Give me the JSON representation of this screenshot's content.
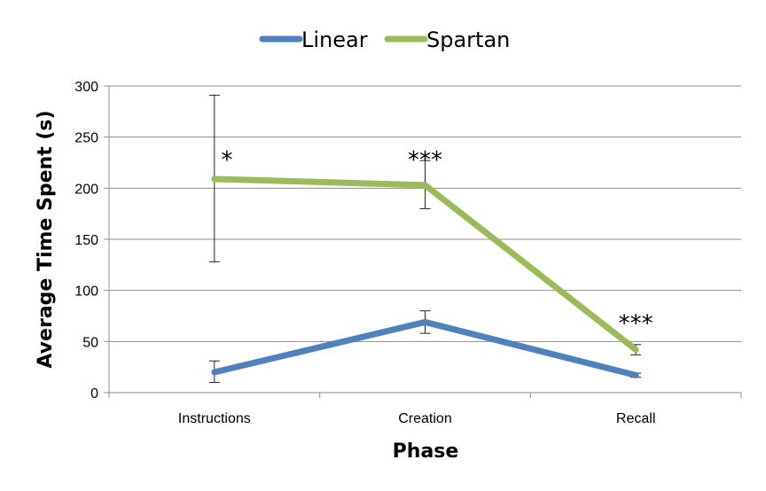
{
  "chart_data": {
    "type": "line",
    "categories": [
      "Instructions",
      "Creation",
      "Recall"
    ],
    "series": [
      {
        "name": "Linear",
        "color": "#4f81bd",
        "values": [
          20,
          69,
          17
        ],
        "error": [
          [
            10,
            31
          ],
          [
            58,
            80
          ],
          [
            15,
            19
          ]
        ]
      },
      {
        "name": "Spartan",
        "color": "#9bbb59",
        "values": [
          209,
          203,
          42
        ],
        "error": [
          [
            128,
            291
          ],
          [
            180,
            227
          ],
          [
            37,
            47
          ]
        ]
      }
    ],
    "annotations": [
      {
        "category": "Instructions",
        "text": "*",
        "y": 236
      },
      {
        "category": "Creation",
        "text": "***",
        "y": 236
      },
      {
        "category": "Recall",
        "text": "***",
        "y": 76
      }
    ],
    "xlabel": "Phase",
    "ylabel": "Average Time Spent (s)",
    "ylim": [
      0,
      300
    ],
    "yticks": [
      0,
      50,
      100,
      150,
      200,
      250,
      300
    ],
    "grid": true,
    "legend": "top"
  }
}
